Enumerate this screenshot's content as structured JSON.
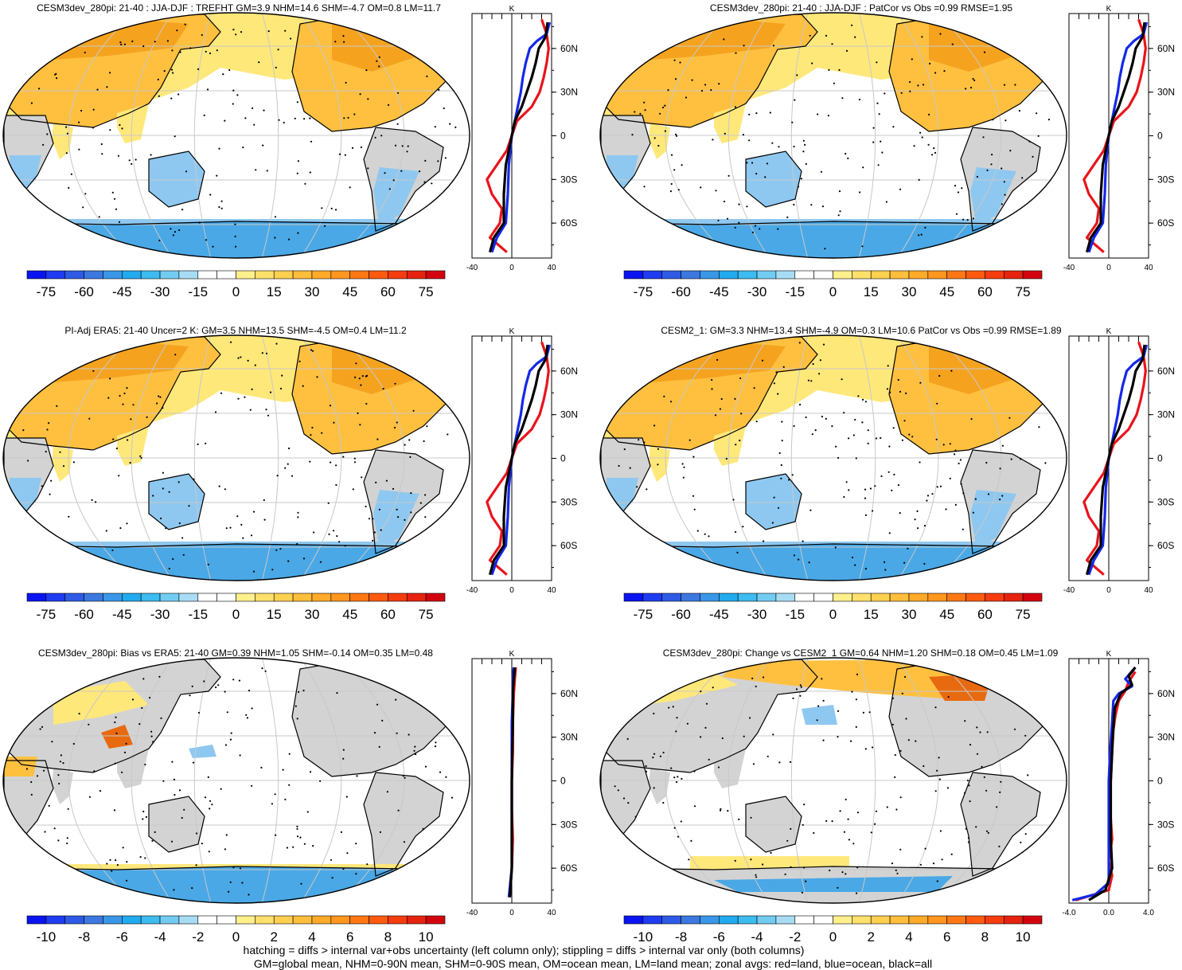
{
  "colors": {
    "land_gray": "#d3d3d3",
    "ocean_bg": "#ffffff",
    "warm_light": "#ffe87a",
    "warm_mid": "#ffc040",
    "warm_dark": "#f5a31f",
    "warm_deep": "#e86a10",
    "cool_light": "#8ec8f0",
    "cool_mid": "#4aa8e6",
    "zonal_land": "#e8141c",
    "zonal_ocean": "#1428e8",
    "zonal_all": "#000000"
  },
  "colorbar_colors": [
    "#0a14f0",
    "#1e3cf0",
    "#2e5ae6",
    "#3c78e0",
    "#3a96e8",
    "#22aaee",
    "#3cbcf0",
    "#72ccf2",
    "#a8dcf5",
    "#ffffff",
    "#ffffff",
    "#fff08c",
    "#ffe06c",
    "#ffd050",
    "#ffbe3c",
    "#ffaa28",
    "#ff961e",
    "#ff7814",
    "#ff5a0f",
    "#f53c0f",
    "#e6230f",
    "#d2050f"
  ],
  "chart_data": [
    {
      "type": "map",
      "title": "CESM3dev_280pi: 21-40 : JJA-DJF : TREFHT GM=3.9 NHM=14.6 SHM=-4.7 OM=0.8 LM=11.7",
      "colorbar_ticks": [
        "-75",
        "-60",
        "-45",
        "-30",
        "-15",
        "0",
        "15",
        "30",
        "45",
        "60",
        "75"
      ],
      "zonal": {
        "units": "K",
        "xticks": [
          "-40",
          "0",
          "40"
        ],
        "xlim": [
          -40,
          40
        ],
        "yticks": [
          "60N",
          "30N",
          "0",
          "30S",
          "60S"
        ]
      }
    },
    {
      "type": "map",
      "title": "CESM3dev_280pi: 21-40 : JJA-DJF : PatCor vs Obs =0.99 RMSE=1.95",
      "colorbar_ticks": [
        "-75",
        "-60",
        "-45",
        "-30",
        "-15",
        "0",
        "15",
        "30",
        "45",
        "60",
        "75"
      ],
      "zonal": {
        "units": "K",
        "xticks": [
          "-40",
          "0",
          "40"
        ],
        "xlim": [
          -40,
          40
        ],
        "yticks": [
          "60N",
          "30N",
          "0",
          "30S",
          "60S"
        ]
      }
    },
    {
      "type": "map",
      "title": "PI-Adj ERA5: 21-40 Uncer=2 K: GM=3.5 NHM=13.5 SHM=-4.5 OM=0.4 LM=11.2",
      "colorbar_ticks": [
        "-75",
        "-60",
        "-45",
        "-30",
        "-15",
        "0",
        "15",
        "30",
        "45",
        "60",
        "75"
      ],
      "zonal": {
        "units": "K",
        "xticks": [
          "-40",
          "0",
          "40"
        ],
        "xlim": [
          -40,
          40
        ],
        "yticks": [
          "60N",
          "30N",
          "0",
          "30S",
          "60S"
        ]
      }
    },
    {
      "type": "map",
      "title": "CESM2_1: GM=3.3 NHM=13.4 SHM=-4.9 OM=0.3 LM=10.6 PatCor vs Obs =0.99 RMSE=1.89",
      "colorbar_ticks": [
        "-75",
        "-60",
        "-45",
        "-30",
        "-15",
        "0",
        "15",
        "30",
        "45",
        "60",
        "75"
      ],
      "zonal": {
        "units": "K",
        "xticks": [
          "-40",
          "0",
          "40"
        ],
        "xlim": [
          -40,
          40
        ],
        "yticks": [
          "60N",
          "30N",
          "0",
          "30S",
          "60S"
        ]
      }
    },
    {
      "type": "map",
      "title": "CESM3dev_280pi: Bias vs ERA5: 21-40 GM=0.39 NHM=1.05 SHM=-0.14 OM=0.35 LM=0.48",
      "colorbar_ticks": [
        "-10",
        "-8",
        "-6",
        "-4",
        "-2",
        "0",
        "2",
        "4",
        "6",
        "8",
        "10"
      ],
      "zonal": {
        "units": "K",
        "xticks": [
          "-40",
          "0",
          "40"
        ],
        "xlim": [
          -40,
          40
        ],
        "yticks": [
          "60N",
          "30N",
          "0",
          "30S",
          "60S"
        ]
      }
    },
    {
      "type": "map",
      "title": "CESM3dev_280pi: Change vs CESM2_1 GM=0.64 NHM=1.20 SHM=0.18 OM=0.45 LM=1.09",
      "colorbar_ticks": [
        "-10",
        "-8",
        "-6",
        "-4",
        "-2",
        "0",
        "2",
        "4",
        "6",
        "8",
        "10"
      ],
      "zonal": {
        "units": "K",
        "xticks": [
          "-4.0",
          "0.0",
          "4.0"
        ],
        "xlim": [
          -6,
          6
        ],
        "yticks": [
          "60N",
          "30N",
          "0",
          "30S",
          "60S"
        ]
      }
    }
  ],
  "footer": [
    "hatching = diffs > internal var+obs uncertainty (left column only); stippling = diffs > internal var only (both columns)",
    "GM=global mean, NHM=0-90N mean, SHM=0-90S mean, OM=ocean mean, LM=land mean; zonal avgs: red=land, blue=ocean, black=all"
  ]
}
